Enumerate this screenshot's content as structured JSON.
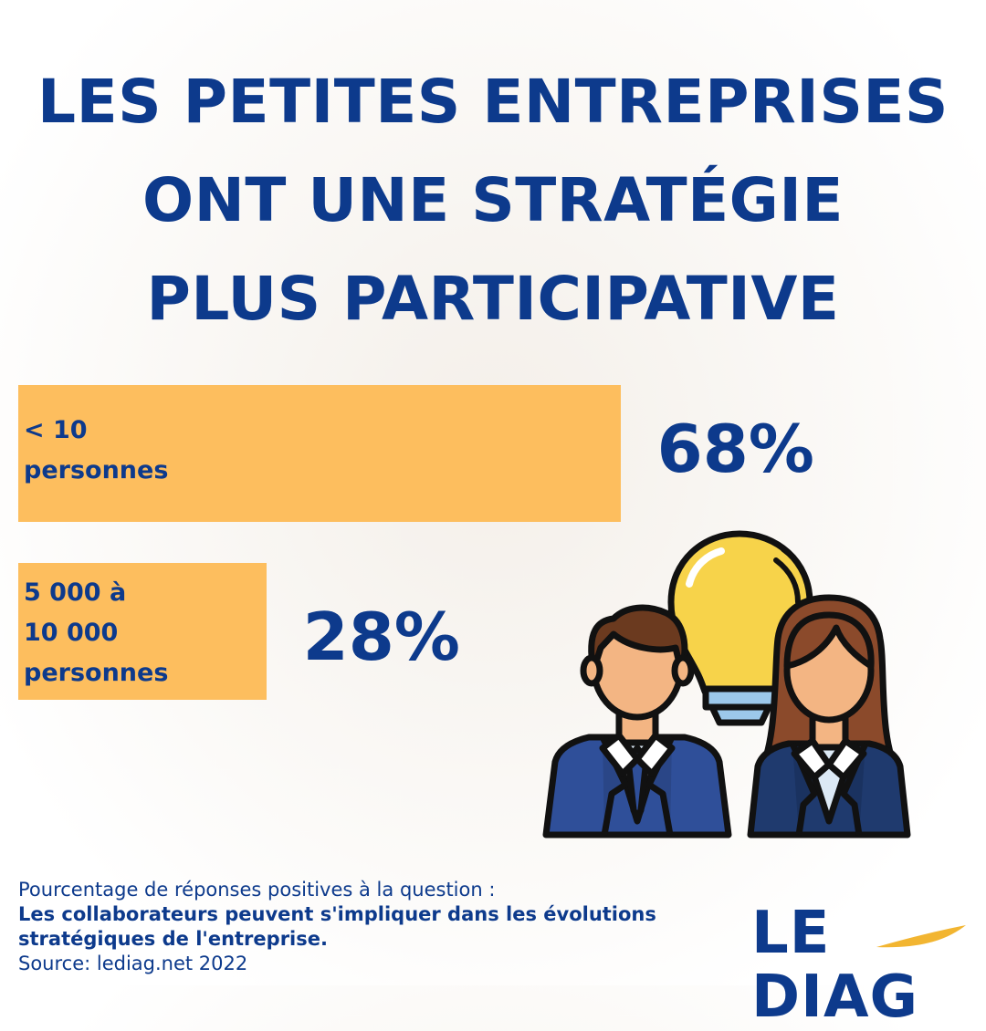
{
  "title": {
    "line1": "LES PETITES ENTREPRISES",
    "line2": "ONT UNE STRATÉGIE",
    "line3": "PLUS PARTICIPATIVE"
  },
  "chart_data": {
    "type": "bar",
    "orientation": "horizontal",
    "categories": [
      "< 10 personnes",
      "5 000 à 10 000 personnes"
    ],
    "category_lines": [
      [
        "< 10",
        "personnes"
      ],
      [
        "5 000 à",
        "10 000",
        "personnes"
      ]
    ],
    "values": [
      68,
      28
    ],
    "value_labels": [
      "68%",
      "28%"
    ],
    "unit": "%",
    "xlim": [
      0,
      100
    ],
    "bar_color": "#fdbe5e",
    "text_color": "#0d3a8c"
  },
  "footer": {
    "intro": "Pourcentage de réponses positives à la question :",
    "question_line1": "Les collaborateurs peuvent s'impliquer dans les évolutions",
    "question_line2": "stratégiques de l'entreprise.",
    "source": "Source: lediag.net 2022"
  },
  "logo": {
    "text": "LE DIAG",
    "accent_color": "#f2b531"
  },
  "illustration": {
    "icons": [
      "man-icon",
      "woman-icon",
      "lightbulb-icon"
    ]
  }
}
